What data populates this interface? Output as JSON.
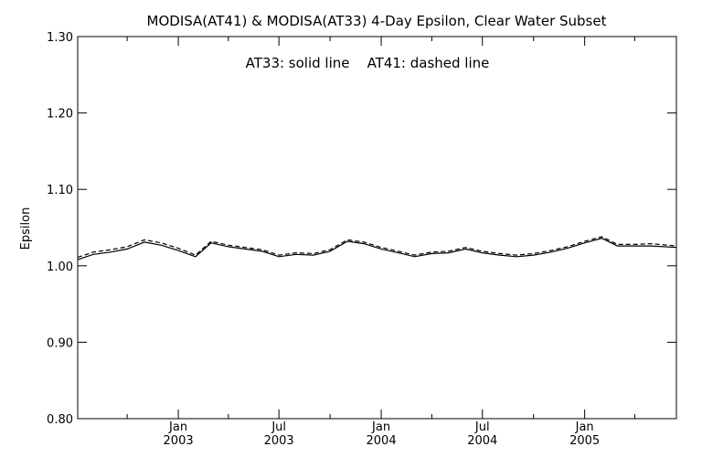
{
  "chart_data": {
    "type": "line",
    "title": "MODISA(AT41) & MODISA(AT33) 4-Day Epsilon, Clear Water Subset",
    "annotation": "AT33: solid line    AT41: dashed line",
    "ylabel": "Epsilon",
    "xlabel": "",
    "ylim": [
      0.8,
      1.3
    ],
    "xlim": [
      "2002-07-04",
      "2005-06-15"
    ],
    "yticks": [
      {
        "value": 0.8,
        "label": "0.80"
      },
      {
        "value": 0.9,
        "label": "0.90"
      },
      {
        "value": 1.0,
        "label": "1.00"
      },
      {
        "value": 1.1,
        "label": "1.10"
      },
      {
        "value": 1.2,
        "label": "1.20"
      },
      {
        "value": 1.3,
        "label": "1.30"
      }
    ],
    "xticks": [
      {
        "date": "2003-01-01",
        "month": "Jan",
        "year": "2003"
      },
      {
        "date": "2003-07-01",
        "month": "Jul",
        "year": "2003"
      },
      {
        "date": "2004-01-01",
        "month": "Jan",
        "year": "2004"
      },
      {
        "date": "2004-07-01",
        "month": "Jul",
        "year": "2004"
      },
      {
        "date": "2005-01-01",
        "month": "Jan",
        "year": "2005"
      }
    ],
    "series": [
      {
        "name": "AT33",
        "style": "solid",
        "color": "#000000",
        "x": [
          "2002-07-04",
          "2002-08-01",
          "2002-09-01",
          "2002-10-01",
          "2002-11-01",
          "2002-12-01",
          "2003-01-01",
          "2003-02-01",
          "2003-03-01",
          "2003-04-01",
          "2003-05-01",
          "2003-06-01",
          "2003-07-01",
          "2003-08-01",
          "2003-09-01",
          "2003-10-01",
          "2003-11-01",
          "2003-12-01",
          "2004-01-01",
          "2004-02-01",
          "2004-03-01",
          "2004-04-01",
          "2004-05-01",
          "2004-06-01",
          "2004-07-01",
          "2004-08-01",
          "2004-09-01",
          "2004-10-01",
          "2004-11-01",
          "2004-12-01",
          "2005-01-01",
          "2005-02-01",
          "2005-03-01",
          "2005-04-01",
          "2005-05-01",
          "2005-06-15"
        ],
        "values": [
          1.008,
          1.015,
          1.018,
          1.022,
          1.031,
          1.027,
          1.02,
          1.012,
          1.03,
          1.025,
          1.022,
          1.019,
          1.012,
          1.015,
          1.014,
          1.019,
          1.032,
          1.029,
          1.022,
          1.017,
          1.012,
          1.016,
          1.017,
          1.022,
          1.017,
          1.014,
          1.012,
          1.014,
          1.018,
          1.023,
          1.03,
          1.036,
          1.026,
          1.026,
          1.026,
          1.024
        ]
      },
      {
        "name": "AT41",
        "style": "dashed",
        "color": "#000000",
        "x": [
          "2002-07-04",
          "2002-08-01",
          "2002-09-01",
          "2002-10-01",
          "2002-11-01",
          "2002-12-01",
          "2003-01-01",
          "2003-02-01",
          "2003-03-01",
          "2003-04-01",
          "2003-05-01",
          "2003-06-01",
          "2003-07-01",
          "2003-08-01",
          "2003-09-01",
          "2003-10-01",
          "2003-11-01",
          "2003-12-01",
          "2004-01-01",
          "2004-02-01",
          "2004-03-01",
          "2004-04-01",
          "2004-05-01",
          "2004-06-01",
          "2004-07-01",
          "2004-08-01",
          "2004-09-01",
          "2004-10-01",
          "2004-11-01",
          "2004-12-01",
          "2005-01-01",
          "2005-02-01",
          "2005-03-01",
          "2005-04-01",
          "2005-05-01",
          "2005-06-15"
        ],
        "values": [
          1.011,
          1.018,
          1.021,
          1.025,
          1.034,
          1.03,
          1.023,
          1.014,
          1.032,
          1.027,
          1.024,
          1.021,
          1.014,
          1.017,
          1.016,
          1.021,
          1.034,
          1.031,
          1.024,
          1.019,
          1.014,
          1.018,
          1.019,
          1.024,
          1.019,
          1.016,
          1.014,
          1.016,
          1.02,
          1.025,
          1.032,
          1.038,
          1.028,
          1.028,
          1.029,
          1.026
        ]
      }
    ],
    "grid": false,
    "legend": "none"
  }
}
